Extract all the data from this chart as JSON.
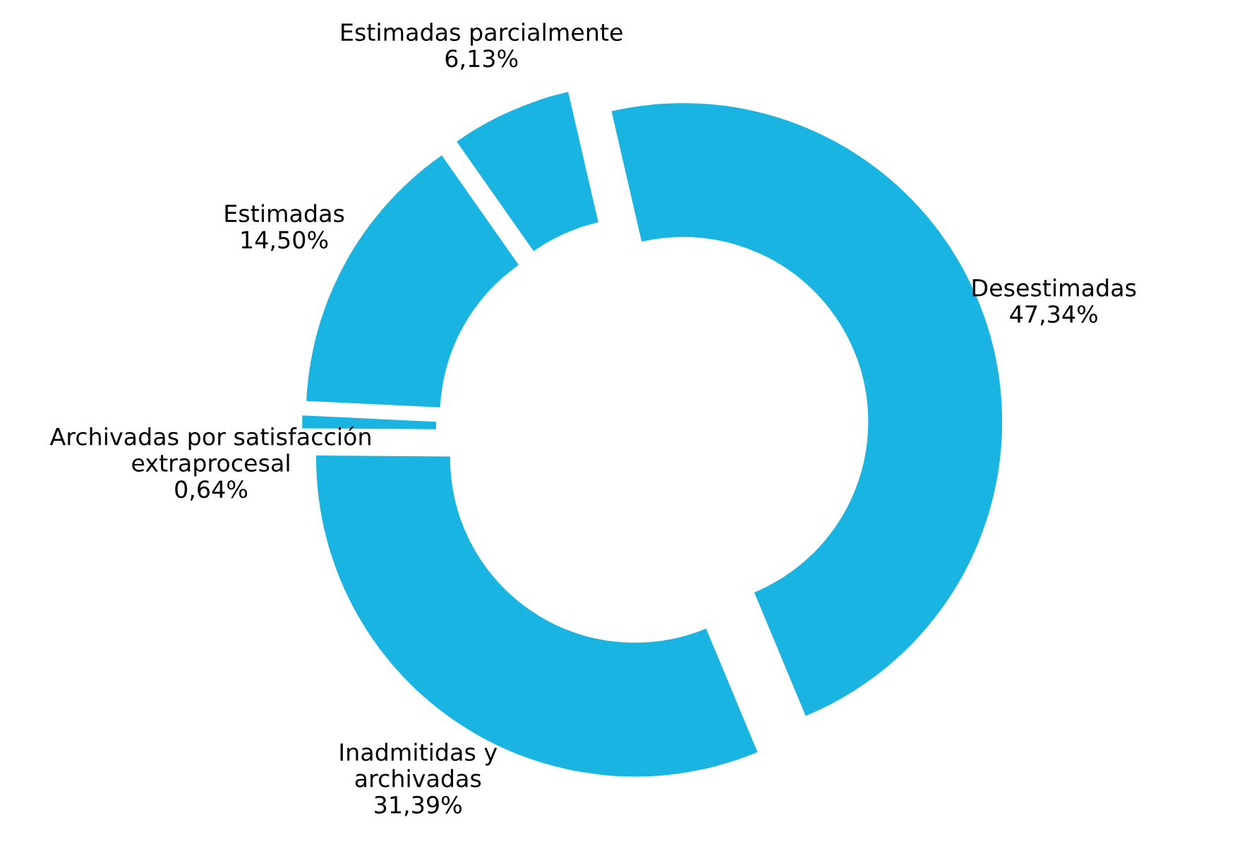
{
  "chart_data": {
    "type": "donut",
    "categories": [
      "Desestimadas",
      "Inadmitidas y\narchivadas",
      "Archivadas por satisfacción\nextraprocesal",
      "Estimadas",
      "Estimadas parcialmente"
    ],
    "values": [
      47.34,
      31.39,
      0.64,
      14.5,
      6.13
    ],
    "value_labels": [
      "47,34%",
      "31,39%",
      "0,64%",
      "14,50%",
      "6,13%"
    ],
    "colors": [
      "#1ab4e2",
      "#1ab4e2",
      "#1ab4e2",
      "#1ab4e2",
      "#1ab4e2"
    ],
    "legend": false
  }
}
